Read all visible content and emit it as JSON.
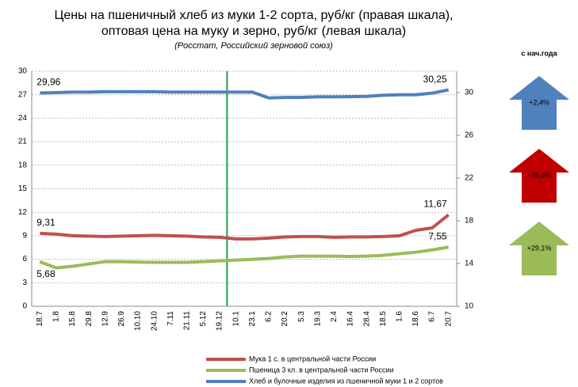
{
  "chart_data": {
    "type": "line",
    "title": [
      "Цены на пшеничный хлеб из муки 1-2 сорта, руб/кг (правая шкала),",
      "оптовая цена на муку и зерно, руб/кг (левая шкала)"
    ],
    "subtitle": "(Росстат, Российский зерновой союз)",
    "categories": [
      "18.7",
      "1.8",
      "15.8",
      "29.8",
      "12.9",
      "26.9",
      "10.10",
      "24.10",
      "7.11",
      "21.11",
      "5.12",
      "19.12",
      "10.1",
      "23.1",
      "6.2",
      "20.2",
      "5.3",
      "19.3",
      "2.4",
      "16.4",
      "28.4",
      "18.5",
      "1.6",
      "18.6",
      "6.7",
      "20.7"
    ],
    "series": [
      {
        "name": "Мука 1 с. в центральной части России",
        "color": "#c0504d",
        "axis": "y",
        "values": [
          9.31,
          9.2,
          9.0,
          8.95,
          8.9,
          8.95,
          9.0,
          9.05,
          9.0,
          8.95,
          8.85,
          8.8,
          8.6,
          8.6,
          8.7,
          8.85,
          8.9,
          8.9,
          8.8,
          8.85,
          8.85,
          8.9,
          9.0,
          9.7,
          10.0,
          11.67
        ],
        "value_labels": [
          "9,31",
          null,
          null,
          null,
          null,
          null,
          null,
          null,
          null,
          null,
          null,
          null,
          null,
          null,
          null,
          null,
          null,
          null,
          null,
          null,
          null,
          null,
          null,
          null,
          null,
          "11,67"
        ]
      },
      {
        "name": "Пшеница 3 кл. в центральной части России",
        "color": "#9bbb59",
        "axis": "y",
        "values": [
          5.68,
          4.9,
          5.1,
          5.4,
          5.7,
          5.7,
          5.65,
          5.6,
          5.6,
          5.6,
          5.7,
          5.8,
          5.9,
          6.0,
          6.1,
          6.3,
          6.4,
          6.4,
          6.4,
          6.35,
          6.4,
          6.5,
          6.7,
          6.9,
          7.2,
          7.55
        ],
        "value_labels": [
          "5,68",
          null,
          null,
          null,
          null,
          null,
          null,
          null,
          null,
          null,
          null,
          null,
          null,
          null,
          null,
          null,
          null,
          null,
          null,
          null,
          null,
          null,
          null,
          null,
          null,
          "7,55"
        ]
      },
      {
        "name": "Хлеб и булочные изделия из пшеничной муки 1 и 2 сортов",
        "color": "#4f81bd",
        "axis": "y2",
        "values": [
          29.96,
          30.0,
          30.05,
          30.05,
          30.08,
          30.08,
          30.08,
          30.08,
          30.05,
          30.05,
          30.05,
          30.05,
          30.05,
          30.05,
          29.5,
          29.55,
          29.55,
          29.6,
          29.6,
          29.62,
          29.65,
          29.75,
          29.8,
          29.8,
          29.95,
          30.25
        ],
        "value_labels": [
          "29,96",
          null,
          null,
          null,
          null,
          null,
          null,
          null,
          null,
          null,
          null,
          null,
          null,
          null,
          null,
          null,
          null,
          null,
          null,
          null,
          null,
          null,
          null,
          null,
          null,
          "30,25"
        ]
      }
    ],
    "ylim": [
      0,
      30
    ],
    "yticks": [
      0,
      3,
      6,
      9,
      12,
      15,
      18,
      21,
      24,
      27,
      30
    ],
    "y2lim": [
      10,
      32
    ],
    "y2ticks": [
      10,
      14,
      18,
      22,
      26,
      30
    ],
    "grid": true,
    "side_title": "с нач.года",
    "annotations": [
      {
        "label": "+2,4%",
        "color": "#4f81bd"
      },
      {
        "label": "+35,4%",
        "color": "#c00000"
      },
      {
        "label": "+29,1%",
        "color": "#9bbb59"
      }
    ]
  }
}
